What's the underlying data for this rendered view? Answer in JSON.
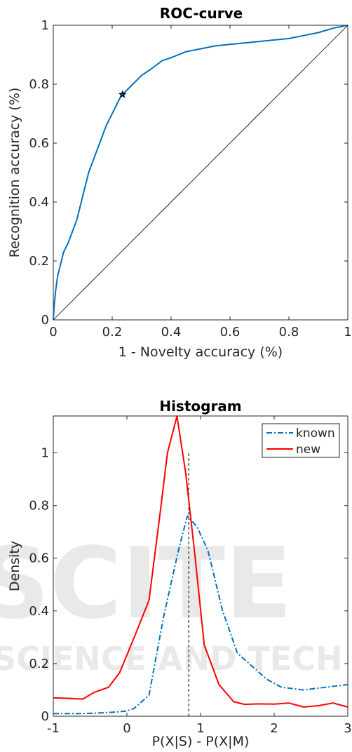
{
  "watermark": {
    "line1": "SCITE",
    "line2": "SCIENCE AND TECH"
  },
  "chart_data": [
    {
      "type": "line",
      "title": "ROC-curve",
      "xlabel": "1 - Novelty accuracy (%)",
      "ylabel": "Recognition accuracy (%)",
      "xlim": [
        0,
        1
      ],
      "ylim": [
        0,
        1
      ],
      "xticks": [
        "0",
        "0.2",
        "0.4",
        "0.6",
        "0.8",
        "1"
      ],
      "yticks": [
        "0",
        "0.2",
        "0.4",
        "0.6",
        "0.8",
        "1"
      ],
      "series": [
        {
          "color": "#0072BD",
          "x": [
            0,
            0.003,
            0.008,
            0.015,
            0.025,
            0.035,
            0.05,
            0.065,
            0.08,
            0.09,
            0.1,
            0.11,
            0.12,
            0.135,
            0.15,
            0.165,
            0.18,
            0.195,
            0.21,
            0.225,
            0.23,
            0.25,
            0.27,
            0.3,
            0.33,
            0.37,
            0.4,
            0.45,
            0.5,
            0.55,
            0.6,
            0.7,
            0.8,
            0.85,
            0.9,
            0.95,
            1.0
          ],
          "y": [
            0,
            0.05,
            0.1,
            0.15,
            0.19,
            0.23,
            0.26,
            0.3,
            0.34,
            0.38,
            0.42,
            0.46,
            0.5,
            0.54,
            0.58,
            0.62,
            0.66,
            0.69,
            0.72,
            0.75,
            0.76,
            0.78,
            0.8,
            0.83,
            0.85,
            0.88,
            0.89,
            0.91,
            0.92,
            0.93,
            0.935,
            0.945,
            0.955,
            0.965,
            0.975,
            0.99,
            1.0
          ]
        },
        {
          "style": "diagonal",
          "color": "#000000",
          "x": [
            0,
            1
          ],
          "y": [
            0,
            1
          ]
        }
      ],
      "marker": {
        "x": 0.235,
        "y": 0.765,
        "symbol": "star",
        "color": "#000000"
      }
    },
    {
      "type": "line",
      "title": "Histogram",
      "xlabel": "P(X|S) - P(X|M)",
      "ylabel": "Density",
      "xlim": [
        -1,
        3
      ],
      "ylim": [
        0,
        1.14
      ],
      "xticks": [
        "-1",
        "0",
        "1",
        "2",
        "3"
      ],
      "yticks": [
        "0",
        "0.2",
        "0.4",
        "0.6",
        "0.8",
        "1"
      ],
      "legend_position": "top-right",
      "series": [
        {
          "name": "known",
          "color": "#0072BD",
          "style": "dash-dot",
          "x": [
            -1,
            -0.8,
            -0.6,
            -0.4,
            -0.2,
            0,
            0.1,
            0.3,
            0.5,
            0.7,
            0.82,
            0.95,
            1.1,
            1.3,
            1.5,
            1.7,
            1.9,
            2.1,
            2.4,
            2.7,
            3.0
          ],
          "y": [
            0.01,
            0.01,
            0.01,
            0.012,
            0.015,
            0.02,
            0.03,
            0.08,
            0.38,
            0.63,
            0.76,
            0.72,
            0.63,
            0.4,
            0.24,
            0.19,
            0.14,
            0.11,
            0.1,
            0.11,
            0.12
          ]
        },
        {
          "name": "new",
          "color": "#FF0000",
          "style": "solid",
          "x": [
            -1,
            -0.8,
            -0.6,
            -0.45,
            -0.25,
            -0.1,
            0.1,
            0.3,
            0.45,
            0.55,
            0.68,
            0.8,
            0.92,
            1.05,
            1.25,
            1.45,
            1.6,
            1.8,
            2.0,
            2.2,
            2.4,
            2.6,
            2.8,
            3.0
          ],
          "y": [
            0.07,
            0.068,
            0.065,
            0.09,
            0.11,
            0.165,
            0.3,
            0.44,
            0.77,
            1.0,
            1.14,
            0.92,
            0.62,
            0.27,
            0.12,
            0.055,
            0.045,
            0.047,
            0.046,
            0.05,
            0.035,
            0.04,
            0.05,
            0.035
          ]
        }
      ],
      "threshold_line": {
        "x": 0.84,
        "y_max": 1.0,
        "style": "dashed",
        "color": "#000000"
      }
    }
  ]
}
